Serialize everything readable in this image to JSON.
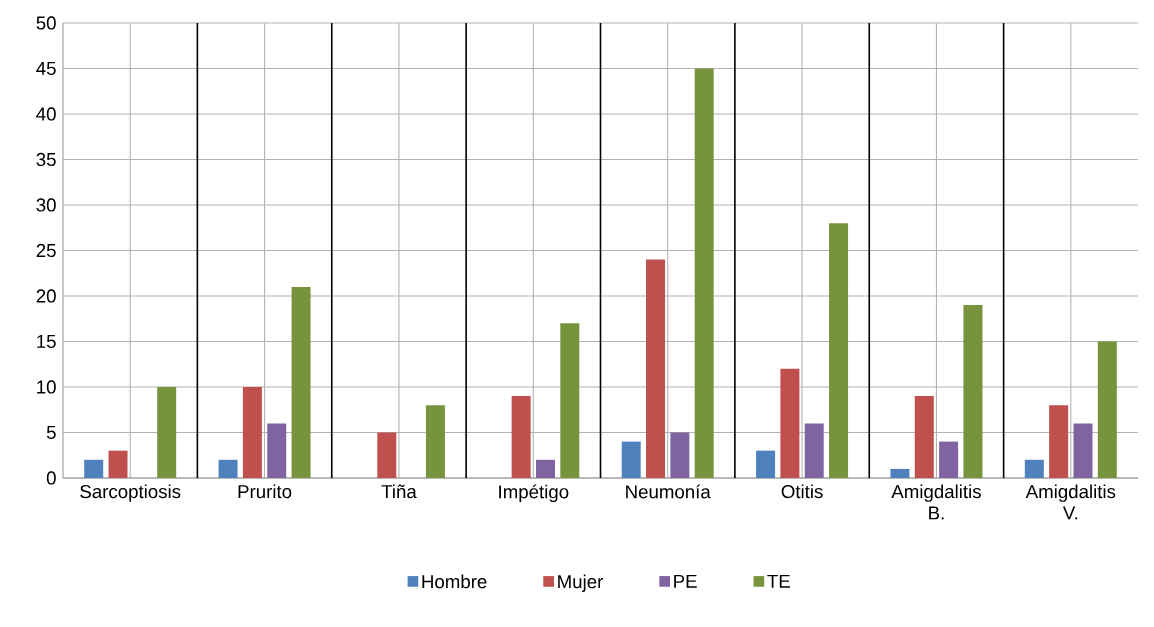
{
  "chart_data": {
    "type": "bar",
    "categories": [
      "Sarcoptiosis",
      "Prurito",
      "Tiña",
      "Impétigo",
      "Neumonía",
      "Otitis",
      "Amigdalitis B.",
      "Amigdalitis V."
    ],
    "series": [
      {
        "name": "Hombre",
        "color": "#4f81bd",
        "values": [
          2,
          2,
          0,
          0,
          4,
          3,
          1,
          2
        ]
      },
      {
        "name": "Mujer",
        "color": "#c0504d",
        "values": [
          3,
          10,
          5,
          9,
          24,
          12,
          9,
          8
        ]
      },
      {
        "name": "PE",
        "color": "#8064a2",
        "values": [
          0,
          6,
          0,
          2,
          5,
          6,
          4,
          6
        ]
      },
      {
        "name": "TE",
        "color": "#77933c",
        "values": [
          10,
          21,
          8,
          17,
          45,
          28,
          19,
          15
        ]
      }
    ],
    "ylim": [
      0,
      50
    ],
    "yticks": [
      0,
      5,
      10,
      15,
      20,
      25,
      30,
      35,
      40,
      45,
      50
    ],
    "grid": true,
    "legend": "bottom"
  }
}
